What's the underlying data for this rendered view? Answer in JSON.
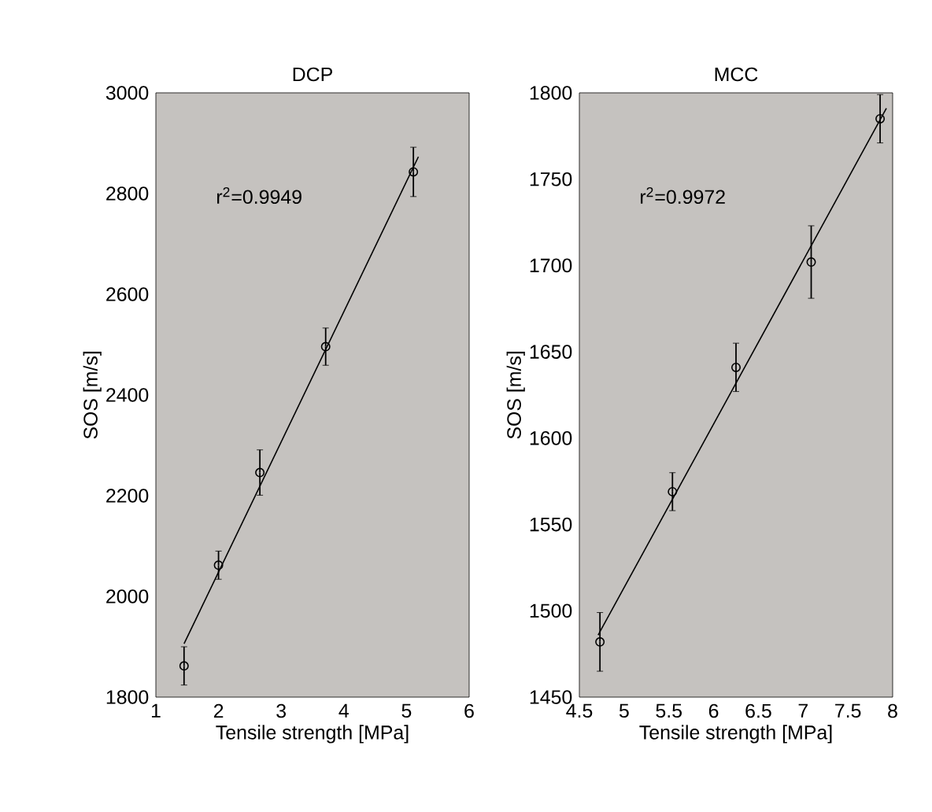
{
  "chart_data": [
    {
      "type": "scatter",
      "title": "DCP",
      "xlabel": "Tensile strength [MPa]",
      "ylabel": "SOS [m/s]",
      "xlim": [
        1,
        6
      ],
      "xticks": [
        1,
        2,
        3,
        4,
        5,
        6
      ],
      "ylim": [
        1800,
        3000
      ],
      "yticks": [
        1800,
        2000,
        2200,
        2400,
        2600,
        2800,
        3000
      ],
      "annotations": [
        "r$^{2}$=0.9949"
      ],
      "series": [
        {
          "marker": "circle",
          "color": "#000000",
          "x": [
            1.45,
            2.0,
            2.66,
            3.71,
            5.11
          ],
          "values": [
            1862,
            2062,
            2246,
            2496,
            2843
          ],
          "errors": [
            38,
            28,
            45,
            37,
            49
          ]
        },
        {
          "type": "line",
          "color": "#000000",
          "x": [
            1.45,
            5.19
          ],
          "values": [
            1906,
            2873
          ]
        }
      ]
    },
    {
      "type": "scatter",
      "title": "MCC",
      "xlabel": "Tensile strength [MPa]",
      "ylabel": "SOS [m/s]",
      "xlim": [
        4.5,
        8
      ],
      "xticks": [
        4.5,
        5,
        5.5,
        6,
        6.5,
        7,
        7.5,
        8
      ],
      "ylim": [
        1450,
        1800
      ],
      "yticks": [
        1450,
        1500,
        1550,
        1600,
        1650,
        1700,
        1750,
        1800
      ],
      "annotations": [
        "r$^{2}$=0.9972"
      ],
      "series": [
        {
          "marker": "circle",
          "color": "#000000",
          "x": [
            4.73,
            5.54,
            6.25,
            7.09,
            7.86
          ],
          "values": [
            1482,
            1569,
            1641,
            1702,
            1785
          ],
          "errors": [
            17,
            11,
            14,
            21,
            14
          ]
        },
        {
          "type": "line",
          "color": "#000000",
          "x": [
            4.71,
            7.93
          ],
          "values": [
            1486,
            1791
          ]
        }
      ]
    }
  ]
}
